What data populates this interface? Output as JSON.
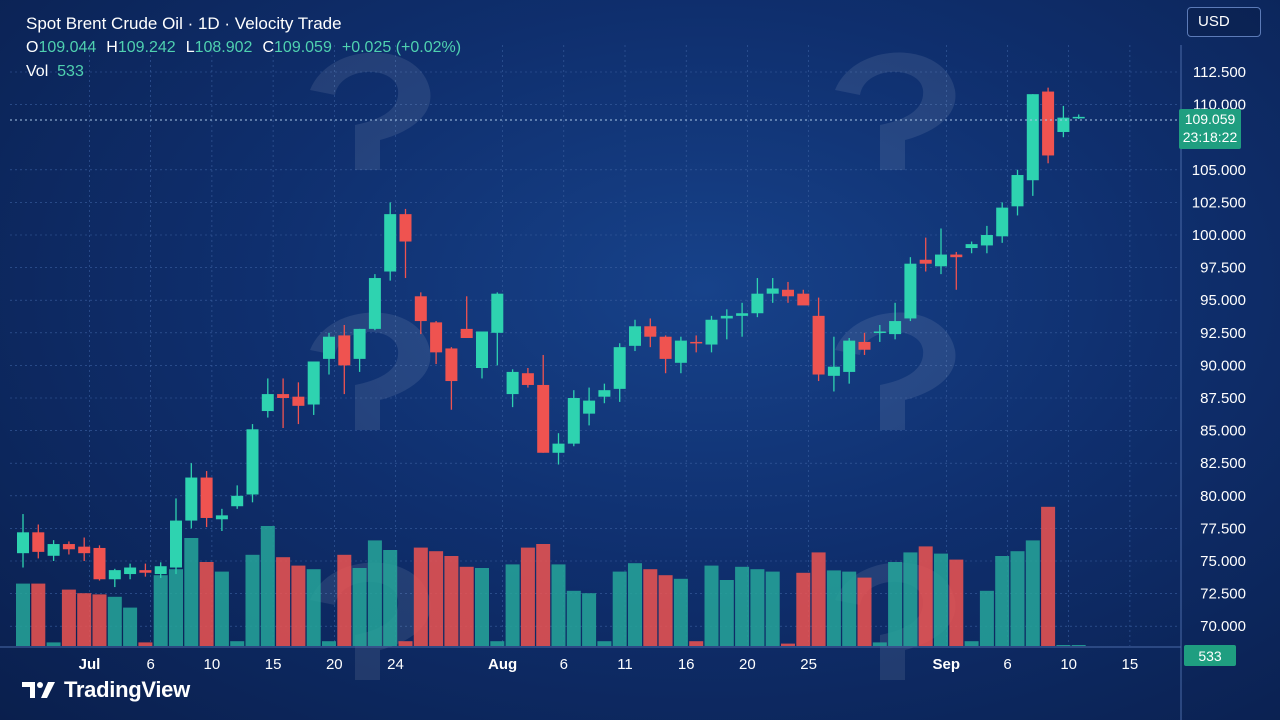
{
  "header": {
    "title": "Spot Brent Crude Oil · 1D · Velocity Trade",
    "ohlc": {
      "o_label": "O",
      "o": "109.044",
      "h_label": "H",
      "h": "109.242",
      "l_label": "L",
      "l": "108.902",
      "c_label": "C",
      "c": "109.059",
      "change": "+0.025 (+0.02%)"
    },
    "vol_label": "Vol",
    "vol": "533"
  },
  "currency": "USD",
  "price_badge": {
    "price": "109.059",
    "countdown": "23:18:22"
  },
  "volume_badge": "533",
  "logo_text": "TradingView",
  "colors": {
    "up": "#26a69a",
    "down": "#ef5350",
    "badge": "#1f9e80"
  },
  "chart_data": {
    "type": "candlestick",
    "title": "Spot Brent Crude Oil · 1D · Velocity Trade",
    "y_ticks": [
      "112.500",
      "110.000",
      "105.000",
      "102.500",
      "100.000",
      "97.500",
      "95.000",
      "92.500",
      "90.000",
      "87.500",
      "85.000",
      "82.500",
      "80.000",
      "77.500",
      "75.000",
      "72.500",
      "70.000"
    ],
    "x_ticks": [
      "Jul",
      "6",
      "10",
      "15",
      "20",
      "24",
      "Aug",
      "6",
      "11",
      "16",
      "20",
      "25",
      "Sep",
      "6",
      "10",
      "15"
    ],
    "grid": true,
    "last_price": 109.059,
    "candles": [
      {
        "o": 75.6,
        "h": 78.6,
        "l": 74.5,
        "c": 77.2,
        "v": 52
      },
      {
        "o": 77.2,
        "h": 77.8,
        "l": 75.2,
        "c": 75.7,
        "v": 52
      },
      {
        "o": 75.4,
        "h": 76.6,
        "l": 75.0,
        "c": 76.3,
        "v": 3
      },
      {
        "o": 76.3,
        "h": 76.5,
        "l": 75.5,
        "c": 75.9,
        "v": 47
      },
      {
        "o": 76.1,
        "h": 76.8,
        "l": 75.0,
        "c": 75.6,
        "v": 44
      },
      {
        "o": 76.0,
        "h": 76.2,
        "l": 73.5,
        "c": 73.6,
        "v": 43
      },
      {
        "o": 73.6,
        "h": 74.4,
        "l": 73.0,
        "c": 74.3,
        "v": 41
      },
      {
        "o": 74.0,
        "h": 74.8,
        "l": 73.6,
        "c": 74.5,
        "v": 32
      },
      {
        "o": 74.3,
        "h": 74.8,
        "l": 73.8,
        "c": 74.1,
        "v": 3
      },
      {
        "o": 74.0,
        "h": 74.9,
        "l": 73.7,
        "c": 74.6,
        "v": 59
      },
      {
        "o": 74.5,
        "h": 79.8,
        "l": 74.0,
        "c": 78.1,
        "v": 64
      },
      {
        "o": 78.1,
        "h": 82.5,
        "l": 77.5,
        "c": 81.4,
        "v": 90
      },
      {
        "o": 81.4,
        "h": 81.9,
        "l": 77.6,
        "c": 78.3,
        "v": 70
      },
      {
        "o": 78.2,
        "h": 79.0,
        "l": 77.3,
        "c": 78.5,
        "v": 62
      },
      {
        "o": 79.2,
        "h": 80.8,
        "l": 79.0,
        "c": 80.0,
        "v": 4
      },
      {
        "o": 80.1,
        "h": 85.5,
        "l": 79.5,
        "c": 85.1,
        "v": 76
      },
      {
        "o": 86.5,
        "h": 89.0,
        "l": 86.0,
        "c": 87.8,
        "v": 100
      },
      {
        "o": 87.8,
        "h": 89.0,
        "l": 85.2,
        "c": 87.5,
        "v": 74
      },
      {
        "o": 87.6,
        "h": 88.7,
        "l": 85.5,
        "c": 86.9,
        "v": 67
      },
      {
        "o": 87.0,
        "h": 90.2,
        "l": 86.2,
        "c": 90.3,
        "v": 64
      },
      {
        "o": 90.5,
        "h": 92.5,
        "l": 89.3,
        "c": 92.2,
        "v": 4
      },
      {
        "o": 92.3,
        "h": 93.1,
        "l": 87.8,
        "c": 90.0,
        "v": 76
      },
      {
        "o": 90.5,
        "h": 92.8,
        "l": 89.5,
        "c": 92.8,
        "v": 65
      },
      {
        "o": 92.8,
        "h": 97.0,
        "l": 92.7,
        "c": 96.7,
        "v": 88
      },
      {
        "o": 97.2,
        "h": 102.5,
        "l": 96.5,
        "c": 101.6,
        "v": 80
      },
      {
        "o": 101.6,
        "h": 102.0,
        "l": 96.7,
        "c": 99.5,
        "v": 4
      },
      {
        "o": 95.3,
        "h": 95.6,
        "l": 92.4,
        "c": 93.4,
        "v": 82
      },
      {
        "o": 93.3,
        "h": 93.4,
        "l": 90.1,
        "c": 91.0,
        "v": 79
      },
      {
        "o": 91.3,
        "h": 91.4,
        "l": 86.6,
        "c": 88.8,
        "v": 75
      },
      {
        "o": 92.8,
        "h": 95.3,
        "l": 92.2,
        "c": 92.1,
        "v": 66
      },
      {
        "o": 89.8,
        "h": 92.5,
        "l": 89.0,
        "c": 92.6,
        "v": 65
      },
      {
        "o": 92.5,
        "h": 95.6,
        "l": 90.0,
        "c": 95.5,
        "v": 4
      },
      {
        "o": 87.8,
        "h": 89.7,
        "l": 86.8,
        "c": 89.5,
        "v": 68
      },
      {
        "o": 89.4,
        "h": 89.8,
        "l": 88.3,
        "c": 88.5,
        "v": 82
      },
      {
        "o": 88.5,
        "h": 90.8,
        "l": 83.3,
        "c": 83.3,
        "v": 85
      },
      {
        "o": 83.3,
        "h": 84.8,
        "l": 82.4,
        "c": 84.0,
        "v": 68
      },
      {
        "o": 84.0,
        "h": 88.1,
        "l": 83.8,
        "c": 87.5,
        "v": 46
      },
      {
        "o": 86.3,
        "h": 88.3,
        "l": 85.4,
        "c": 87.3,
        "v": 44
      },
      {
        "o": 87.6,
        "h": 88.6,
        "l": 87.1,
        "c": 88.1,
        "v": 4
      },
      {
        "o": 88.2,
        "h": 91.7,
        "l": 87.2,
        "c": 91.4,
        "v": 62
      },
      {
        "o": 91.5,
        "h": 93.5,
        "l": 91.1,
        "c": 93.0,
        "v": 69
      },
      {
        "o": 93.0,
        "h": 93.6,
        "l": 91.4,
        "c": 92.2,
        "v": 64
      },
      {
        "o": 92.2,
        "h": 92.3,
        "l": 89.4,
        "c": 90.5,
        "v": 59
      },
      {
        "o": 90.2,
        "h": 92.2,
        "l": 89.4,
        "c": 91.9,
        "v": 56
      },
      {
        "o": 91.8,
        "h": 92.3,
        "l": 91.0,
        "c": 91.7,
        "v": 4
      },
      {
        "o": 91.6,
        "h": 93.8,
        "l": 91.0,
        "c": 93.5,
        "v": 67
      },
      {
        "o": 93.6,
        "h": 94.3,
        "l": 92.0,
        "c": 93.8,
        "v": 55
      },
      {
        "o": 93.8,
        "h": 94.8,
        "l": 92.2,
        "c": 94.0,
        "v": 66
      },
      {
        "o": 94.0,
        "h": 96.7,
        "l": 93.7,
        "c": 95.5,
        "v": 64
      },
      {
        "o": 95.5,
        "h": 96.7,
        "l": 94.8,
        "c": 95.9,
        "v": 62
      },
      {
        "o": 95.8,
        "h": 96.4,
        "l": 94.8,
        "c": 95.3,
        "v": 2
      },
      {
        "o": 95.5,
        "h": 95.8,
        "l": 94.7,
        "c": 94.6,
        "v": 61
      },
      {
        "o": 93.8,
        "h": 95.2,
        "l": 88.8,
        "c": 89.3,
        "v": 78
      },
      {
        "o": 89.2,
        "h": 92.2,
        "l": 88.0,
        "c": 89.9,
        "v": 63
      },
      {
        "o": 89.5,
        "h": 92.1,
        "l": 88.6,
        "c": 91.9,
        "v": 62
      },
      {
        "o": 91.8,
        "h": 92.5,
        "l": 90.8,
        "c": 91.2,
        "v": 57
      },
      {
        "o": 92.5,
        "h": 93.1,
        "l": 91.8,
        "c": 92.6,
        "v": 3
      },
      {
        "o": 92.4,
        "h": 94.8,
        "l": 92.0,
        "c": 93.4,
        "v": 70
      },
      {
        "o": 93.6,
        "h": 98.3,
        "l": 93.4,
        "c": 97.8,
        "v": 78
      },
      {
        "o": 98.1,
        "h": 99.8,
        "l": 97.2,
        "c": 97.8,
        "v": 83
      },
      {
        "o": 97.6,
        "h": 100.5,
        "l": 97.0,
        "c": 98.5,
        "v": 77
      },
      {
        "o": 98.5,
        "h": 98.7,
        "l": 95.8,
        "c": 98.3,
        "v": 72
      },
      {
        "o": 99.0,
        "h": 99.5,
        "l": 98.6,
        "c": 99.3,
        "v": 4
      },
      {
        "o": 99.2,
        "h": 100.7,
        "l": 98.6,
        "c": 100.0,
        "v": 46
      },
      {
        "o": 99.9,
        "h": 102.5,
        "l": 99.4,
        "c": 102.1,
        "v": 75
      },
      {
        "o": 102.2,
        "h": 105.0,
        "l": 101.5,
        "c": 104.6,
        "v": 79
      },
      {
        "o": 104.2,
        "h": 110.8,
        "l": 103.0,
        "c": 110.8,
        "v": 88
      },
      {
        "o": 111.0,
        "h": 111.3,
        "l": 105.5,
        "c": 106.1,
        "v": 116
      },
      {
        "o": 107.9,
        "h": 109.9,
        "l": 107.5,
        "c": 109.0,
        "v": 0.6
      },
      {
        "o": 109.044,
        "h": 109.242,
        "l": 108.902,
        "c": 109.059,
        "v": 0.6
      }
    ]
  }
}
